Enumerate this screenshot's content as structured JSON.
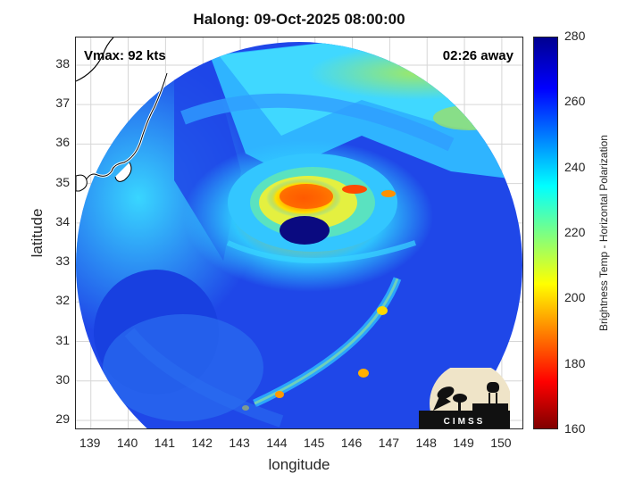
{
  "title": "Halong: 09-Oct-2025 08:00:00",
  "annotations": {
    "vmax": "Vmax: 92 kts",
    "time_away": "02:26 away"
  },
  "axes": {
    "xlabel": "longitude",
    "ylabel": "latitude",
    "xlim": [
      138.6,
      150.6
    ],
    "ylim": [
      28.75,
      38.7
    ],
    "xticks": [
      139,
      140,
      141,
      142,
      143,
      144,
      145,
      146,
      147,
      148,
      149,
      150
    ],
    "yticks": [
      29,
      30,
      31,
      32,
      33,
      34,
      35,
      36,
      37,
      38
    ],
    "grid": true
  },
  "colorbar": {
    "label": "Brightness Temp - Horizontal Polarization",
    "range": [
      160,
      280
    ],
    "ticks": [
      160,
      180,
      200,
      220,
      240,
      260,
      280
    ],
    "colormap": "jet"
  },
  "logo": {
    "text": "CIMSS"
  },
  "colors": {
    "coast": "#ffffff",
    "coast_outline": "#000000",
    "eye": "#0a0a80"
  }
}
